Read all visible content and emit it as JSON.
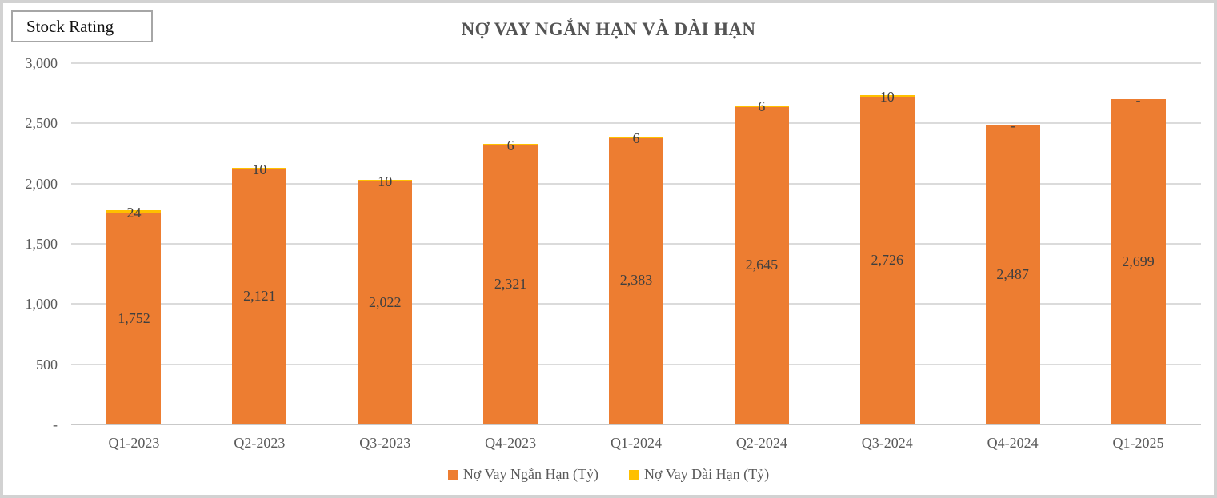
{
  "stock_rating": {
    "label": "Stock Rating"
  },
  "chart_data": {
    "type": "bar",
    "stacked": true,
    "title": "NỢ VAY NGẮN HẠN VÀ DÀI HẠN",
    "categories": [
      "Q1-2023",
      "Q2-2023",
      "Q3-2023",
      "Q4-2023",
      "Q1-2024",
      "Q2-2024",
      "Q3-2024",
      "Q4-2024",
      "Q1-2025"
    ],
    "series": [
      {
        "name": "Nợ Vay Ngắn Hạn (Tỷ)",
        "color": "#ED7D31",
        "values": [
          1752,
          2121,
          2022,
          2321,
          2383,
          2645,
          2726,
          2487,
          2699
        ],
        "labels": [
          "1,752",
          "2,121",
          "2,022",
          "2,321",
          "2,383",
          "2,645",
          "2,726",
          "2,487",
          "2,699"
        ]
      },
      {
        "name": "Nợ Vay Dài Hạn (Tỷ)",
        "color": "#FFC000",
        "values": [
          24,
          10,
          10,
          6,
          6,
          6,
          10,
          0,
          0
        ],
        "labels": [
          "24",
          "10",
          "10",
          "6",
          "6",
          "6",
          "10",
          "-",
          "-"
        ]
      }
    ],
    "ylim": [
      0,
      3000
    ],
    "yticks": [
      {
        "value": 0,
        "label": "-"
      },
      {
        "value": 500,
        "label": "500"
      },
      {
        "value": 1000,
        "label": "1,000"
      },
      {
        "value": 1500,
        "label": "1,500"
      },
      {
        "value": 2000,
        "label": "2,000"
      },
      {
        "value": 2500,
        "label": "2,500"
      },
      {
        "value": 3000,
        "label": "3,000"
      }
    ],
    "grid": true,
    "legend_position": "bottom"
  },
  "colors": {
    "short_term_bar": "#ED7D31",
    "long_term_bar": "#FFC000",
    "gridline": "#DBDBDB",
    "title_text": "#545454",
    "axis_text": "#595959",
    "data_label_text": "#3F3F3F",
    "frame_border": "#D2D2D2"
  }
}
